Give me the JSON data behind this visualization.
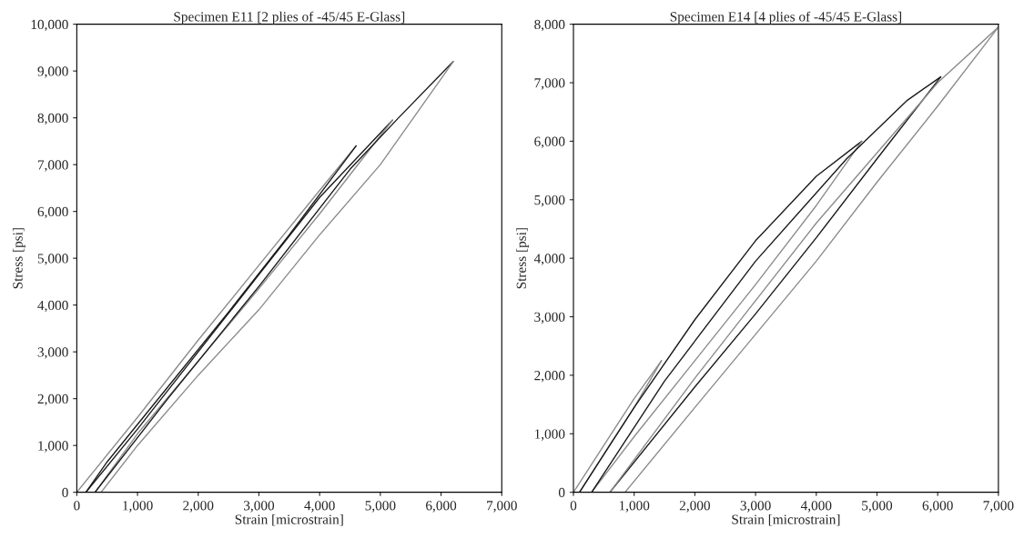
{
  "chart_data": [
    {
      "type": "line",
      "title": "Specimen E11 [2 plies of -45/45 E-Glass]",
      "xlabel": "Strain [microstrain]",
      "ylabel": "Stress [psi]",
      "xlim": [
        0,
        7000
      ],
      "ylim": [
        0,
        10000
      ],
      "xticks": [
        0,
        {
          "value": 1000,
          "label": "1,000"
        },
        {
          "value": 2000,
          "label": "2,000"
        },
        {
          "value": 3000,
          "label": "3,000"
        },
        {
          "value": 4000,
          "label": "4,000"
        },
        {
          "value": 5000,
          "label": "5,000"
        },
        {
          "value": 6000,
          "label": "6,000"
        },
        {
          "value": 7000,
          "label": "7,000"
        }
      ],
      "yticks": [
        0,
        {
          "value": 1000,
          "label": "1,000"
        },
        {
          "value": 2000,
          "label": "2,000"
        },
        {
          "value": 3000,
          "label": "3,000"
        },
        {
          "value": 4000,
          "label": "4,000"
        },
        {
          "value": 5000,
          "label": "5,000"
        },
        {
          "value": 6000,
          "label": "6,000"
        },
        {
          "value": 7000,
          "label": "7,000"
        },
        {
          "value": 8000,
          "label": "8,000"
        },
        {
          "value": 9000,
          "label": "9,000"
        },
        {
          "value": 10000,
          "label": "10,000"
        }
      ],
      "grid": false,
      "legend": false,
      "series": [
        {
          "color": "#8c8c8c",
          "x": [
            0,
            1000,
            2000,
            3000,
            4000,
            4600
          ],
          "values": [
            0,
            1600,
            3250,
            4850,
            6450,
            7400
          ]
        },
        {
          "color": "#1a1a1a",
          "x": [
            4600,
            3500,
            2500,
            1500,
            500,
            150
          ],
          "values": [
            7400,
            5500,
            3850,
            2250,
            650,
            0
          ]
        },
        {
          "color": "#1a1a1a",
          "x": [
            150,
            1000,
            2000,
            3000,
            4000,
            5200
          ],
          "values": [
            0,
            1350,
            3000,
            4650,
            6300,
            7950
          ]
        },
        {
          "color": "#8c8c8c",
          "x": [
            5200,
            4000,
            3000,
            2000,
            1000,
            300
          ],
          "values": [
            7950,
            5950,
            4350,
            2800,
            1250,
            0
          ]
        },
        {
          "color": "#1a1a1a",
          "x": [
            300,
            1500,
            3000,
            4500,
            5300,
            6200
          ],
          "values": [
            0,
            2000,
            4400,
            6900,
            8000,
            9200
          ]
        },
        {
          "color": "#8c8c8c",
          "x": [
            6200,
            5000,
            4000,
            3000,
            2000,
            1000,
            400
          ],
          "values": [
            9200,
            7000,
            5500,
            3900,
            2500,
            1000,
            0
          ]
        }
      ]
    },
    {
      "type": "line",
      "title": "Specimen E14 [4 plies of -45/45 E-Glass]",
      "xlabel": "Strain [microstrain]",
      "ylabel": "Stress [psi]",
      "xlim": [
        0,
        7000
      ],
      "ylim": [
        0,
        8000
      ],
      "xticks": [
        0,
        {
          "value": 1000,
          "label": "1,000"
        },
        {
          "value": 2000,
          "label": "2,000"
        },
        {
          "value": 3000,
          "label": "3,000"
        },
        {
          "value": 4000,
          "label": "4,000"
        },
        {
          "value": 5000,
          "label": "5,000"
        },
        {
          "value": 6000,
          "label": "6,000"
        },
        {
          "value": 7000,
          "label": "7,000"
        }
      ],
      "yticks": [
        0,
        {
          "value": 1000,
          "label": "1,000"
        },
        {
          "value": 2000,
          "label": "2,000"
        },
        {
          "value": 3000,
          "label": "3,000"
        },
        {
          "value": 4000,
          "label": "4,000"
        },
        {
          "value": 5000,
          "label": "5,000"
        },
        {
          "value": 6000,
          "label": "6,000"
        },
        {
          "value": 7000,
          "label": "7,000"
        },
        {
          "value": 8000,
          "label": "8,000"
        }
      ],
      "grid": false,
      "legend": false,
      "series": [
        {
          "color": "#8c8c8c",
          "x": [
            0,
            500,
            1000,
            1450
          ],
          "values": [
            0,
            800,
            1600,
            2250
          ]
        },
        {
          "color": "#8c8c8c",
          "x": [
            1450,
            1000,
            500,
            100
          ],
          "values": [
            2250,
            1450,
            650,
            0
          ]
        },
        {
          "color": "#1a1a1a",
          "x": [
            100,
            1000,
            2000,
            3000,
            4000,
            4750
          ],
          "values": [
            0,
            1450,
            2950,
            4300,
            5400,
            6000
          ]
        },
        {
          "color": "#8c8c8c",
          "x": [
            4750,
            4000,
            3000,
            2000,
            1000,
            300
          ],
          "values": [
            6000,
            4900,
            3550,
            2250,
            950,
            0
          ]
        },
        {
          "color": "#1a1a1a",
          "x": [
            300,
            1500,
            3000,
            4500,
            5500,
            6050
          ],
          "values": [
            0,
            1900,
            3950,
            5700,
            6700,
            7100
          ]
        },
        {
          "color": "#1a1a1a",
          "x": [
            6050,
            5000,
            4000,
            3000,
            2000,
            600
          ],
          "values": [
            7100,
            5700,
            4350,
            3050,
            1800,
            0
          ]
        },
        {
          "color": "#8c8c8c",
          "x": [
            600,
            2000,
            4000,
            6000,
            7000
          ],
          "values": [
            0,
            1950,
            4600,
            7000,
            7950
          ]
        },
        {
          "color": "#8c8c8c",
          "x": [
            7000,
            6000,
            5000,
            4000,
            3000,
            2000,
            850
          ],
          "values": [
            7950,
            6600,
            5300,
            3950,
            2700,
            1450,
            0
          ]
        }
      ]
    }
  ]
}
